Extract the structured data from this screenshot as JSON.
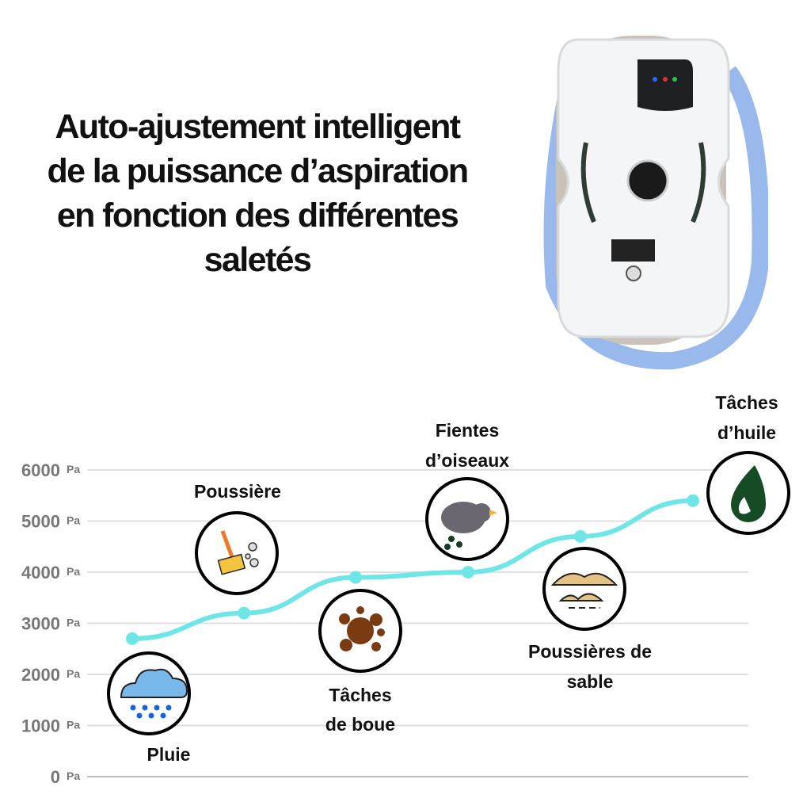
{
  "title_lines": [
    "Auto-ajustement intelligent",
    "de la puissance d’aspiration",
    "en fonction des différentes",
    "saletés"
  ],
  "chart_data": {
    "type": "line",
    "title": "",
    "xlabel": "",
    "ylabel": "",
    "ylim": [
      0,
      6000
    ],
    "yticks": [
      0,
      1000,
      2000,
      3000,
      4000,
      5000,
      6000
    ],
    "yunit": "Pa",
    "grid": true,
    "line_color": "#6ee6e8",
    "categories": [
      "Pluie",
      "Poussière",
      "Tâches de boue",
      "Fientes d’oiseaux",
      "Poussières de sable",
      "Tâches d’huile"
    ],
    "values": [
      2700,
      3200,
      3900,
      4000,
      4700,
      5400
    ],
    "point_labels": [
      {
        "lines": [
          "Pluie"
        ],
        "icon": "rain-cloud-icon",
        "position": "below"
      },
      {
        "lines": [
          "Poussière"
        ],
        "icon": "broom-icon",
        "position": "above"
      },
      {
        "lines": [
          "Tâches",
          "de boue"
        ],
        "icon": "mud-splat-icon",
        "position": "below"
      },
      {
        "lines": [
          "Fientes",
          "d’oiseaux"
        ],
        "icon": "bird-icon",
        "position": "above"
      },
      {
        "lines": [
          "Poussières de",
          "sable"
        ],
        "icon": "sand-icon",
        "position": "below"
      },
      {
        "lines": [
          "Tâches",
          "d’huile"
        ],
        "icon": "oil-drop-icon",
        "position": "above"
      }
    ]
  }
}
